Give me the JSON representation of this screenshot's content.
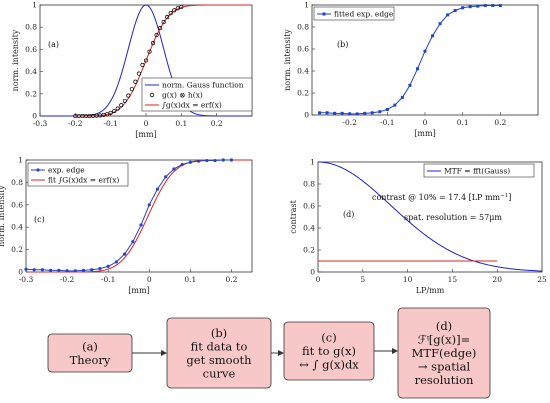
{
  "chart_data": [
    {
      "id": "a",
      "type": "line",
      "panel_label": "(a)",
      "xlabel": "[mm]",
      "ylabel": "norm. intensity",
      "xlim": [
        -0.3,
        0.3
      ],
      "ylim": [
        0,
        1
      ],
      "xticks": [
        "-0.3",
        "-0.2",
        "-0.1",
        "0",
        "0.1",
        "0.2"
      ],
      "yticks": [
        "0",
        "0.2",
        "0.4",
        "0.6",
        "0.8",
        "1"
      ],
      "legend_position": "bottom-right",
      "series": [
        {
          "name": "norm. Gauss function",
          "color": "#2222cc",
          "style": "line",
          "sigma": 0.05,
          "center": 0.0
        },
        {
          "name": "g(x) ⊗ h(x)",
          "color": "#000000",
          "style": "circle-markers",
          "x": [
            -0.2,
            -0.19,
            -0.18,
            -0.17,
            -0.16,
            -0.15,
            -0.14,
            -0.13,
            -0.12,
            -0.11,
            -0.1,
            -0.09,
            -0.08,
            -0.07,
            -0.06,
            -0.05,
            -0.04,
            -0.03,
            -0.02,
            -0.01,
            0,
            0.01,
            0.02,
            0.03,
            0.04,
            0.05,
            0.06,
            0.07,
            0.08,
            0.09,
            0.1
          ],
          "y": [
            0,
            0,
            0,
            0,
            0,
            0.001,
            0.003,
            0.005,
            0.01,
            0.017,
            0.028,
            0.044,
            0.067,
            0.097,
            0.136,
            0.184,
            0.242,
            0.309,
            0.382,
            0.46,
            0.5,
            0.58,
            0.657,
            0.729,
            0.792,
            0.846,
            0.891,
            0.926,
            0.952,
            0.97,
            0.982
          ]
        },
        {
          "name": "∫g(x)dx = erf(x)",
          "color": "#dd2222",
          "style": "line",
          "sigma": 0.05,
          "center": 0.0
        }
      ]
    },
    {
      "id": "b",
      "type": "line",
      "panel_label": "(b)",
      "xlabel": "[mm]",
      "ylabel": "norm. intensity",
      "xlim": [
        -0.3,
        0.3
      ],
      "ylim": [
        0,
        1
      ],
      "xticks": [
        "-0.2",
        "-0.1",
        "0",
        "0.1",
        "0.2"
      ],
      "yticks": [
        "0",
        "0.2",
        "0.4",
        "0.6",
        "0.8",
        "1"
      ],
      "legend_position": "top-left",
      "series": [
        {
          "name": "fitted exp. edge",
          "color": "#2244cc",
          "style": "line-square-markers",
          "x": [
            -0.28,
            -0.26,
            -0.24,
            -0.22,
            -0.2,
            -0.18,
            -0.16,
            -0.14,
            -0.12,
            -0.1,
            -0.08,
            -0.06,
            -0.04,
            -0.02,
            0,
            0.02,
            0.04,
            0.06,
            0.08,
            0.1,
            0.12,
            0.14,
            0.16,
            0.18,
            0.2
          ],
          "y": [
            0.02,
            0.02,
            0.015,
            0.015,
            0.01,
            0.01,
            0.015,
            0.02,
            0.03,
            0.05,
            0.09,
            0.16,
            0.27,
            0.42,
            0.58,
            0.72,
            0.83,
            0.91,
            0.95,
            0.975,
            0.985,
            0.99,
            0.995,
            0.995,
            0.995
          ]
        }
      ]
    },
    {
      "id": "c",
      "type": "line",
      "panel_label": "(c)",
      "xlabel": "[mm]",
      "ylabel": "norm. intensity",
      "xlim": [
        -0.3,
        0.25
      ],
      "ylim": [
        0,
        1
      ],
      "xticks": [
        "-0.3",
        "-0.2",
        "-0.1",
        "0",
        "0.1",
        "0.2"
      ],
      "yticks": [
        "0",
        "0.2",
        "0.4",
        "0.6",
        "0.8",
        "1"
      ],
      "legend_position": "top-left",
      "series": [
        {
          "name": "exp. edge",
          "color": "#2244cc",
          "style": "line-star-markers",
          "x": [
            -0.3,
            -0.28,
            -0.26,
            -0.24,
            -0.22,
            -0.2,
            -0.18,
            -0.16,
            -0.14,
            -0.12,
            -0.1,
            -0.08,
            -0.06,
            -0.04,
            -0.02,
            0,
            0.02,
            0.04,
            0.06,
            0.08,
            0.1,
            0.12,
            0.14,
            0.16,
            0.18,
            0.2
          ],
          "y": [
            0.025,
            0.02,
            0.02,
            0.015,
            0.015,
            0.01,
            0.01,
            0.015,
            0.02,
            0.03,
            0.05,
            0.09,
            0.16,
            0.27,
            0.42,
            0.6,
            0.74,
            0.85,
            0.92,
            0.96,
            0.98,
            0.99,
            0.995,
            0.995,
            1.0,
            1.0
          ]
        },
        {
          "name": "fit ∫G(x)dx = erf(x)",
          "color": "#dd2222",
          "style": "line",
          "sigma": 0.05,
          "center": -0.003
        }
      ]
    },
    {
      "id": "d",
      "type": "line",
      "panel_label": "(d)",
      "xlabel": "LP/mm",
      "ylabel": "contrast",
      "xlim": [
        0,
        25
      ],
      "ylim": [
        0,
        1
      ],
      "xticks": [
        "0",
        "5",
        "10",
        "15",
        "20",
        "25"
      ],
      "yticks": [
        "0",
        "0.2",
        "0.4",
        "0.6",
        "0.8",
        "1"
      ],
      "legend_position": "top-right",
      "series": [
        {
          "name": "MTF = fft(Gauss)",
          "color": "#2222cc",
          "style": "line",
          "f10": 17.4
        },
        {
          "name": "",
          "color": "#dd2222",
          "style": "line",
          "level": 0.1,
          "x_end": 20
        }
      ],
      "annotations": [
        "contrast @ 10% = 17.4 [LP mm",
        "−1",
        "]",
        "spat. resolution = 57μm"
      ]
    }
  ],
  "flow": {
    "boxes": [
      {
        "lines": [
          "(a)",
          "Theory"
        ]
      },
      {
        "lines": [
          "(b)",
          "fit data to",
          "get smooth",
          "curve"
        ]
      },
      {
        "lines": [
          "(c)",
          "fit to g(x)",
          "↔ ∫ g(x)dx"
        ]
      },
      {
        "lines": [
          "(d)",
          "ℱᵎ[g(x)]=",
          "MTF(edge)",
          "→ spatial",
          "resolution"
        ]
      }
    ],
    "box_fill": "#f8c8c8",
    "box_stroke": "#333333"
  }
}
